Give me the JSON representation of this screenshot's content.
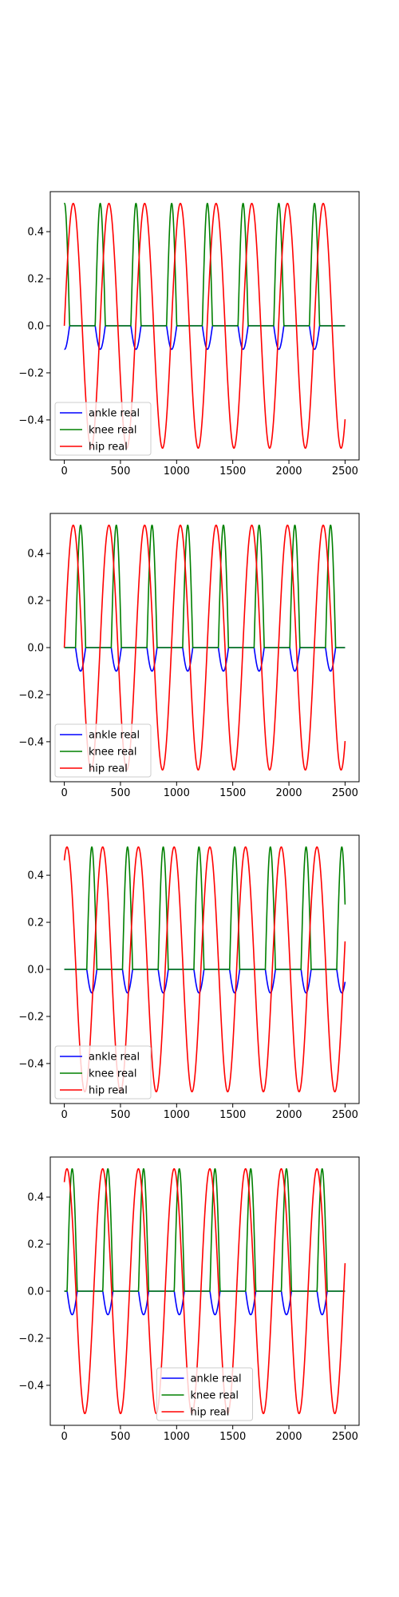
{
  "chart_data": [
    {
      "type": "line",
      "xlim": [
        -125,
        2625
      ],
      "ylim": [
        -0.57,
        0.57
      ],
      "xticks": [
        0,
        500,
        1000,
        1500,
        2000,
        2500
      ],
      "xtick_labels": [
        "0",
        "500",
        "1000",
        "1500",
        "2000",
        "2500"
      ],
      "yticks": [
        0.4,
        0.2,
        0.0,
        -0.2,
        -0.4
      ],
      "ytick_labels": [
        "0.4",
        "0.2",
        "0.0",
        "−0.2",
        "−0.4"
      ],
      "legend_loc": "lower-left",
      "grid": false,
      "period": 318,
      "series": [
        {
          "name": "ankle real",
          "color": "#0000ff",
          "kind": "ankle",
          "peak": -0.1,
          "center": 320,
          "halfwidth": 45
        },
        {
          "name": "knee real",
          "color": "#008000",
          "kind": "knee",
          "peak": 0.52,
          "center": 320,
          "halfwidth": 45
        },
        {
          "name": "hip real",
          "color": "#ff0000",
          "kind": "hip",
          "amplitude": 0.52,
          "phase": 0
        }
      ]
    },
    {
      "type": "line",
      "xlim": [
        -125,
        2625
      ],
      "ylim": [
        -0.57,
        0.57
      ],
      "xticks": [
        0,
        500,
        1000,
        1500,
        2000,
        2500
      ],
      "xtick_labels": [
        "0",
        "500",
        "1000",
        "1500",
        "2000",
        "2500"
      ],
      "yticks": [
        0.4,
        0.2,
        0.0,
        -0.2,
        -0.4
      ],
      "ytick_labels": [
        "0.4",
        "0.2",
        "0.0",
        "−0.2",
        "−0.4"
      ],
      "legend_loc": "lower-left",
      "grid": false,
      "period": 318,
      "series": [
        {
          "name": "ankle real",
          "color": "#0000ff",
          "kind": "ankle",
          "peak": -0.1,
          "center": 145,
          "halfwidth": 45
        },
        {
          "name": "knee real",
          "color": "#008000",
          "kind": "knee",
          "peak": 0.52,
          "center": 145,
          "halfwidth": 45
        },
        {
          "name": "hip real",
          "color": "#ff0000",
          "kind": "hip",
          "amplitude": 0.52,
          "phase": 0
        }
      ]
    },
    {
      "type": "line",
      "xlim": [
        -125,
        2625
      ],
      "ylim": [
        -0.57,
        0.57
      ],
      "xticks": [
        0,
        500,
        1000,
        1500,
        2000,
        2500
      ],
      "xtick_labels": [
        "0",
        "500",
        "1000",
        "1500",
        "2000",
        "2500"
      ],
      "yticks": [
        0.4,
        0.2,
        0.0,
        -0.2,
        -0.4
      ],
      "ytick_labels": [
        "0.4",
        "0.2",
        "0.0",
        "−0.2",
        "−0.4"
      ],
      "legend_loc": "lower-left",
      "grid": false,
      "period": 318,
      "series": [
        {
          "name": "ankle real",
          "color": "#0000ff",
          "kind": "ankle",
          "peak": -0.1,
          "center": 245,
          "halfwidth": 45
        },
        {
          "name": "knee real",
          "color": "#008000",
          "kind": "knee",
          "peak": 0.52,
          "center": 245,
          "halfwidth": 45
        },
        {
          "name": "hip real",
          "color": "#ff0000",
          "kind": "hip",
          "amplitude": 0.52,
          "phase": 1.1
        }
      ]
    },
    {
      "type": "line",
      "xlim": [
        -125,
        2625
      ],
      "ylim": [
        -0.57,
        0.57
      ],
      "xticks": [
        0,
        500,
        1000,
        1500,
        2000,
        2500
      ],
      "xtick_labels": [
        "0",
        "500",
        "1000",
        "1500",
        "2000",
        "2500"
      ],
      "yticks": [
        0.4,
        0.2,
        0.0,
        -0.2,
        -0.4
      ],
      "ytick_labels": [
        "0.4",
        "0.2",
        "0.0",
        "−0.2",
        "−0.4"
      ],
      "legend_loc": "lower-center",
      "grid": false,
      "period": 318,
      "series": [
        {
          "name": "ankle real",
          "color": "#0000ff",
          "kind": "ankle",
          "peak": -0.1,
          "center": 70,
          "halfwidth": 45
        },
        {
          "name": "knee real",
          "color": "#008000",
          "kind": "knee",
          "peak": 0.52,
          "center": 70,
          "halfwidth": 45
        },
        {
          "name": "hip real",
          "color": "#ff0000",
          "kind": "hip",
          "amplitude": 0.52,
          "phase": 1.1
        }
      ]
    }
  ]
}
